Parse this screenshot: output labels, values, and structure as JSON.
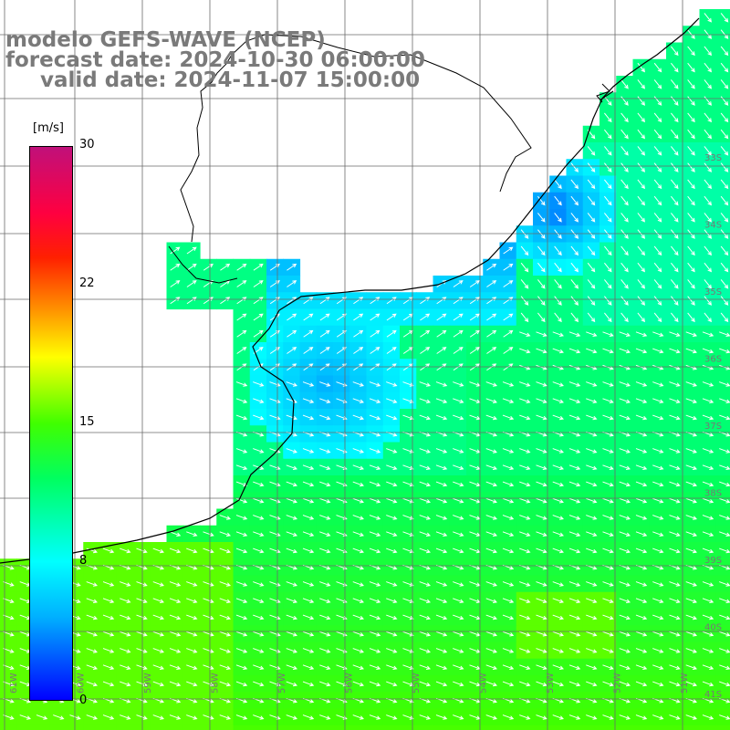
{
  "title": {
    "model": "modelo GEFS-WAVE (NCEP)",
    "forecast": "forecast date: 2024-10-30 06:00:00",
    "valid": "valid date: 2024-11-07 15:00:00"
  },
  "colorbar": {
    "unit": "[m/s]",
    "ticks": [
      "30",
      "22",
      "15",
      "8",
      "0"
    ],
    "colors": [
      "#0000ff",
      "#00b0ff",
      "#00ffff",
      "#00ff60",
      "#40ff00",
      "#ffff00",
      "#ff8000",
      "#ff2000",
      "#c0107a"
    ]
  },
  "axes": {
    "lon_labels": [
      "61W",
      "60W",
      "59W",
      "58W",
      "57W",
      "56W",
      "55W",
      "54W",
      "53W",
      "52W",
      "51W"
    ],
    "lat_labels": [
      "33S",
      "34S",
      "35S",
      "36S",
      "37S",
      "38S",
      "39S",
      "40S",
      "41S"
    ]
  },
  "colors": {
    "land": "#ffffff",
    "grid": "#6a6a6a",
    "coast": "#000000",
    "arrows": "#ffffff"
  }
}
